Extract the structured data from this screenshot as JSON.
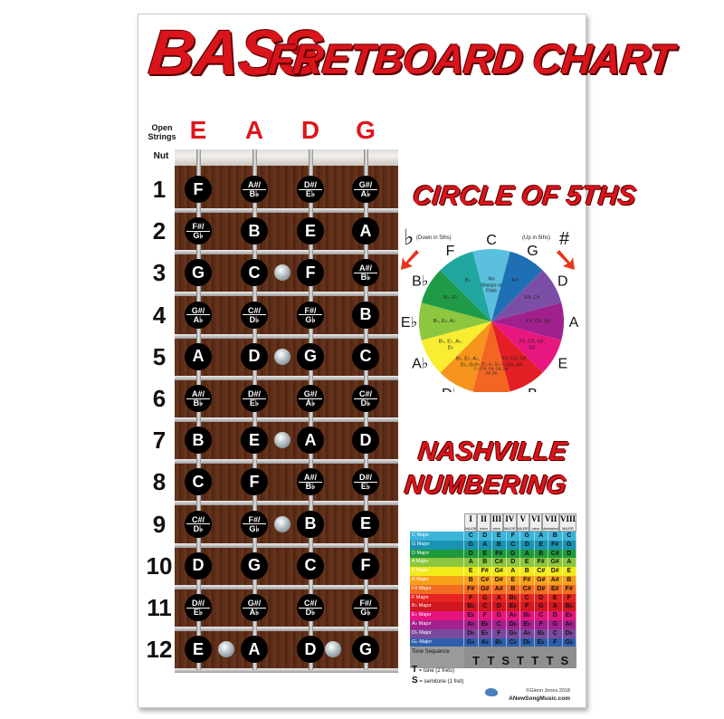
{
  "title": {
    "line1": "BASS",
    "line2": "FRETBOARD CHART"
  },
  "fretboard": {
    "open_label": "Open Strings",
    "nut_label": "Nut",
    "strings": [
      "E",
      "A",
      "D",
      "G"
    ],
    "frets": [
      {
        "num": "1",
        "notes": [
          "F",
          "A#/B♭",
          "D#/E♭",
          "G#/A♭"
        ]
      },
      {
        "num": "2",
        "notes": [
          "F#/G♭",
          "B",
          "E",
          "A"
        ]
      },
      {
        "num": "3",
        "notes": [
          "G",
          "C",
          "F",
          "A#/B♭"
        ]
      },
      {
        "num": "4",
        "notes": [
          "G#/A♭",
          "C#/D♭",
          "F#/G♭",
          "B"
        ]
      },
      {
        "num": "5",
        "notes": [
          "A",
          "D",
          "G",
          "C"
        ]
      },
      {
        "num": "6",
        "notes": [
          "A#/B♭",
          "D#/E♭",
          "G#/A♭",
          "C#/D♭"
        ]
      },
      {
        "num": "7",
        "notes": [
          "B",
          "E",
          "A",
          "D"
        ]
      },
      {
        "num": "8",
        "notes": [
          "C",
          "F",
          "A#/B♭",
          "D#/E♭"
        ]
      },
      {
        "num": "9",
        "notes": [
          "C#/D♭",
          "F#/G♭",
          "B",
          "E"
        ]
      },
      {
        "num": "10",
        "notes": [
          "D",
          "G",
          "C",
          "F"
        ]
      },
      {
        "num": "11",
        "notes": [
          "D#/E♭",
          "G#/A♭",
          "C#/D♭",
          "F#/G♭"
        ]
      },
      {
        "num": "12",
        "notes": [
          "E",
          "A",
          "D",
          "G"
        ]
      }
    ],
    "inlay_frets": [
      3,
      5,
      7,
      9
    ],
    "double_inlay_fret": 12
  },
  "circle": {
    "title": "CIRCLE OF 5THS",
    "flat_symbol": "♭",
    "flat_label": "(Down in 5ths)",
    "sharp_symbol": "#",
    "sharp_label": "(Up in 5ths)",
    "keys": [
      {
        "key": "C",
        "inner": "No Sharps or Flats",
        "color": "#5bc0de"
      },
      {
        "key": "G",
        "inner": "F#",
        "color": "#1f6fb5"
      },
      {
        "key": "D",
        "inner": "F#, C#",
        "color": "#7b4fa6"
      },
      {
        "key": "A",
        "inner": "F#, C#, G#",
        "color": "#a0218d"
      },
      {
        "key": "E",
        "inner": "F#, C#, G#, D#",
        "color": "#e8177f"
      },
      {
        "key": "B",
        "inner": "F#, C#, G#, D#, A#",
        "color": "#e31e24"
      },
      {
        "key": "G♭ / F#",
        "inner": "B♭, E♭, A♭, D♭, G♭, C♭ | F#, C#, G#, D#, A#, E#",
        "color": "#f26522"
      },
      {
        "key": "D♭",
        "inner": "B♭, E♭, A♭, D♭, G♭",
        "color": "#f7941d"
      },
      {
        "key": "A♭",
        "inner": "B♭, E♭, A♭, D♭",
        "color": "#f9ed32"
      },
      {
        "key": "E♭",
        "inner": "B♭, E♭, A♭",
        "color": "#8dc63f"
      },
      {
        "key": "B♭",
        "inner": "B♭, E♭",
        "color": "#1f9b48"
      },
      {
        "key": "F",
        "inner": "B♭",
        "color": "#22a7a0"
      }
    ]
  },
  "nashville": {
    "title1": "NASHVILLE",
    "title2": "NUMBERING",
    "headers": [
      {
        "n": "I",
        "q": "MAJOR"
      },
      {
        "n": "II",
        "q": "minor"
      },
      {
        "n": "III",
        "q": "minor"
      },
      {
        "n": "IV",
        "q": "MAJOR"
      },
      {
        "n": "V",
        "q": "MAJOR"
      },
      {
        "n": "VI",
        "q": "minor"
      },
      {
        "n": "VII",
        "q": "diminished"
      },
      {
        "n": "VIII",
        "q": "MAJOR"
      }
    ],
    "rows": [
      {
        "key": "C Major",
        "color": "#3bb4d8",
        "notes": [
          "C",
          "D",
          "E",
          "F",
          "G",
          "A",
          "B",
          "C"
        ]
      },
      {
        "key": "G Major",
        "color": "#1a93b3",
        "notes": [
          "G",
          "A",
          "B",
          "C",
          "D",
          "E",
          "F#",
          "G"
        ]
      },
      {
        "key": "D Major",
        "color": "#1e9a3c",
        "notes": [
          "D",
          "E",
          "F#",
          "G",
          "A",
          "B",
          "C#",
          "D"
        ]
      },
      {
        "key": "A Major",
        "color": "#8cc63f",
        "notes": [
          "A",
          "B",
          "C#",
          "D",
          "E",
          "F#",
          "G#",
          "A"
        ]
      },
      {
        "key": "E Major",
        "color": "#f4ea1a",
        "notes": [
          "E",
          "F#",
          "G#",
          "A",
          "B",
          "C#",
          "D#",
          "E"
        ]
      },
      {
        "key": "B Major",
        "color": "#f7a11a",
        "notes": [
          "B",
          "C#",
          "D#",
          "E",
          "F#",
          "G#",
          "A#",
          "B"
        ]
      },
      {
        "key": "F# Major",
        "color": "#f26d21",
        "notes": [
          "F#",
          "G#",
          "A#",
          "B",
          "C#",
          "D#",
          "E#",
          "F#"
        ]
      },
      {
        "key": "F Major",
        "color": "#e52421",
        "notes": [
          "F",
          "G",
          "A",
          "B♭",
          "C",
          "D",
          "E",
          "F"
        ]
      },
      {
        "key": "B♭ Major",
        "color": "#d0161f",
        "notes": [
          "B♭",
          "C",
          "D",
          "E♭",
          "F",
          "G",
          "A",
          "B♭"
        ]
      },
      {
        "key": "E♭ Major",
        "color": "#e6147e",
        "notes": [
          "E♭",
          "F",
          "G",
          "A♭",
          "B♭",
          "C",
          "D",
          "E♭"
        ]
      },
      {
        "key": "A♭ Major",
        "color": "#a3218e",
        "notes": [
          "A♭",
          "B♭",
          "C",
          "D♭",
          "E♭",
          "F",
          "G",
          "A♭"
        ]
      },
      {
        "key": "D♭ Major",
        "color": "#7a4a9f",
        "notes": [
          "D♭",
          "E♭",
          "F",
          "G♭",
          "A♭",
          "B♭",
          "C",
          "D♭"
        ]
      },
      {
        "key": "G♭ Major",
        "color": "#2f5fac",
        "notes": [
          "G♭",
          "A♭",
          "B♭",
          "C♭",
          "D♭",
          "E♭",
          "F",
          "G♭"
        ]
      }
    ],
    "tone_label": "Tone Sequence",
    "tone_sequence": [
      "T",
      "T",
      "S",
      "T",
      "T",
      "T",
      "S"
    ],
    "legend": [
      {
        "sym": "T",
        "text": "= tone (2 frets)"
      },
      {
        "sym": "S",
        "text": "= semitone (1 fret)"
      }
    ]
  },
  "footer": {
    "copyright": "©Glenn Jones 2018",
    "site": "ANewSongMusic.com"
  }
}
